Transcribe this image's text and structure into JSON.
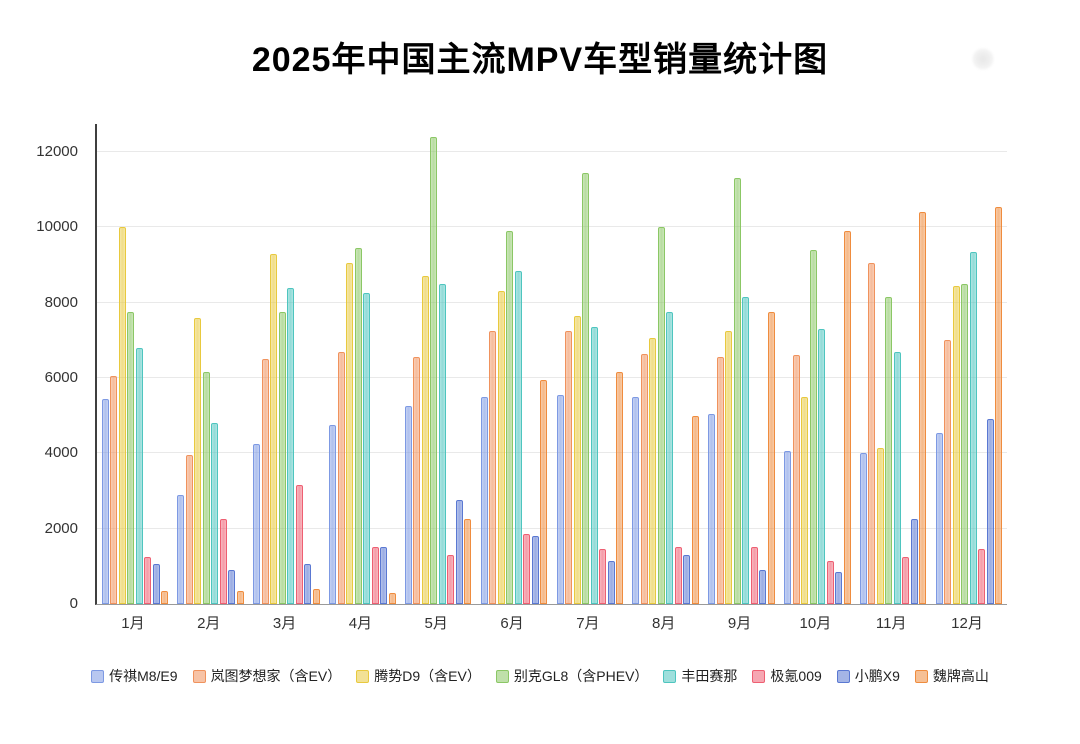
{
  "title": "2025年中国主流MPV车型销量统计图",
  "chart_data": {
    "type": "bar",
    "title": "2025年中国主流MPV车型销量统计图",
    "categories": [
      "1月",
      "2月",
      "3月",
      "4月",
      "5月",
      "6月",
      "7月",
      "8月",
      "9月",
      "10月",
      "11月",
      "12月"
    ],
    "series": [
      {
        "name": "传祺M8/E9",
        "color": "#7d99e3",
        "values": [
          5450,
          2900,
          4250,
          4750,
          5250,
          5500,
          5550,
          5500,
          5050,
          4050,
          4000,
          4550
        ]
      },
      {
        "name": "岚图梦想家（含EV）",
        "color": "#f0925d",
        "values": [
          6050,
          3950,
          6500,
          6700,
          6550,
          7250,
          7250,
          6650,
          6550,
          6600,
          9050,
          7000
        ]
      },
      {
        "name": "腾势D9（含EV）",
        "color": "#e8c93e",
        "values": [
          10000,
          7600,
          9300,
          9050,
          8700,
          8300,
          7650,
          7050,
          7250,
          5500,
          4150,
          8450
        ]
      },
      {
        "name": "别克GL8（含PHEV）",
        "color": "#8bc765",
        "values": [
          7750,
          6150,
          7750,
          9450,
          12400,
          9900,
          11450,
          10000,
          11300,
          9400,
          8150,
          8500
        ]
      },
      {
        "name": "丰田赛那",
        "color": "#4ec5bf",
        "values": [
          6800,
          4800,
          8400,
          8250,
          8500,
          8850,
          7350,
          7750,
          8150,
          7300,
          6700,
          9350
        ]
      },
      {
        "name": "极氪009",
        "color": "#ee5f72",
        "values": [
          1250,
          2250,
          3150,
          1500,
          1300,
          1850,
          1450,
          1500,
          1500,
          1150,
          1250,
          1450
        ]
      },
      {
        "name": "小鹏X9",
        "color": "#5a78d2",
        "values": [
          1050,
          900,
          1050,
          1500,
          2750,
          1800,
          1150,
          1300,
          900,
          850,
          2250,
          4900
        ]
      },
      {
        "name": "魏牌高山",
        "color": "#ef8c3e",
        "values": [
          350,
          350,
          400,
          300,
          2250,
          5950,
          6150,
          5000,
          7750,
          9900,
          10400,
          10550
        ]
      }
    ],
    "ylim": [
      0,
      12000
    ],
    "yticks": [
      0,
      2000,
      4000,
      6000,
      8000,
      10000,
      12000
    ],
    "grid": true,
    "legend_position": "bottom"
  }
}
